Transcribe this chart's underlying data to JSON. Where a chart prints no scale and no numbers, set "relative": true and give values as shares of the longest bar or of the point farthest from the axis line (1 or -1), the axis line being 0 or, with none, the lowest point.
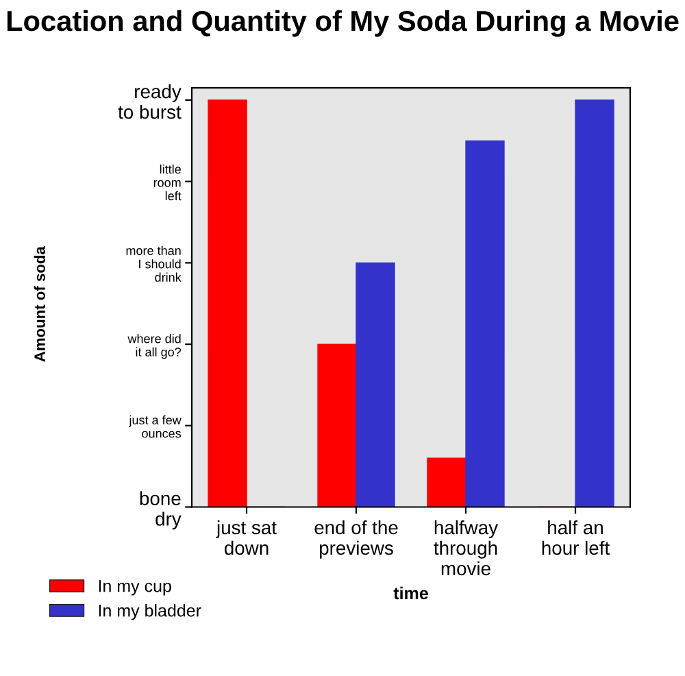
{
  "chart_data": {
    "type": "bar",
    "title": "Location and Quantity of My Soda During a Movie",
    "xlabel": "time",
    "relative": true,
    "categories": [
      "just sat\ndown",
      "end of the\npreviews",
      "halfway\nthrough\nmovie",
      "half an\nhour left"
    ],
    "series": [
      {
        "name": "In my cup",
        "color": "#ff0000",
        "values": [
          1,
          0.4,
          0.12,
          0
        ]
      },
      {
        "name": "In my bladder",
        "color": "#3333cc",
        "values": [
          0,
          0.6,
          0.9,
          1
        ]
      }
    ],
    "annotations": [
      "Amount of soda",
      "bone\ndry",
      "just a few\nounces",
      "where did\nit all go?",
      "more than\nI should\ndrink",
      "little\nroom\nleft",
      "ready\nto burst"
    ],
    "grid": false,
    "legend": "bottom left"
  }
}
